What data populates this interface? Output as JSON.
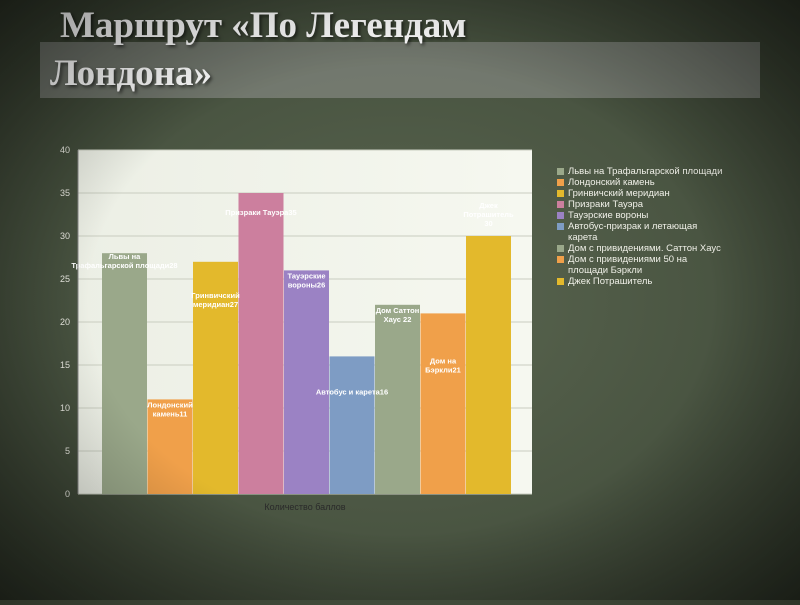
{
  "slide": {
    "title_line1": "Маршрут «По Легендам",
    "title_line2": "Лондона»"
  },
  "chart_data": {
    "type": "bar",
    "xlabel": "Количество баллов",
    "ylabel": "",
    "ylim": [
      0,
      40
    ],
    "yticks": [
      0,
      5,
      10,
      15,
      20,
      25,
      30,
      35,
      40
    ],
    "grid": true,
    "legend_position": "right",
    "series": [
      {
        "name": "Львы на Трафальгарской площади",
        "value": 28,
        "color": "#9aa88a",
        "label": "Львы на Трафальгарской площади28"
      },
      {
        "name": "Лондонский камень",
        "value": 11,
        "color": "#f0a04a",
        "label": "Лондонский камень11"
      },
      {
        "name": "Гринвичский меридиан",
        "value": 27,
        "color": "#e3b92c",
        "label": "Гринвичский меридиан27"
      },
      {
        "name": "Призраки Тауэра",
        "value": 35,
        "color": "#cc7f9e",
        "label": "Призраки Тауэра35"
      },
      {
        "name": "Тауэрские вороны",
        "value": 26,
        "color": "#9b82c4",
        "label": "Тауэрские вороны26"
      },
      {
        "name": "Автобус-призрак и летающая карета",
        "value": 16,
        "color": "#7e9cc4",
        "label": "Автобус и карета16"
      },
      {
        "name": "Дом с привидениями. Саттон Хаус",
        "value": 22,
        "color": "#9aa88a",
        "label": "Дом Саттон Хаус 22"
      },
      {
        "name": "Дом с привидениями 50 на площади Бэркли",
        "value": 21,
        "color": "#f0a04a",
        "label": "Дом на Бэркли21"
      },
      {
        "name": "Джек Потрашитель",
        "value": 30,
        "color": "#e3b92c",
        "label": "Джек Потрашитель 30"
      }
    ]
  }
}
